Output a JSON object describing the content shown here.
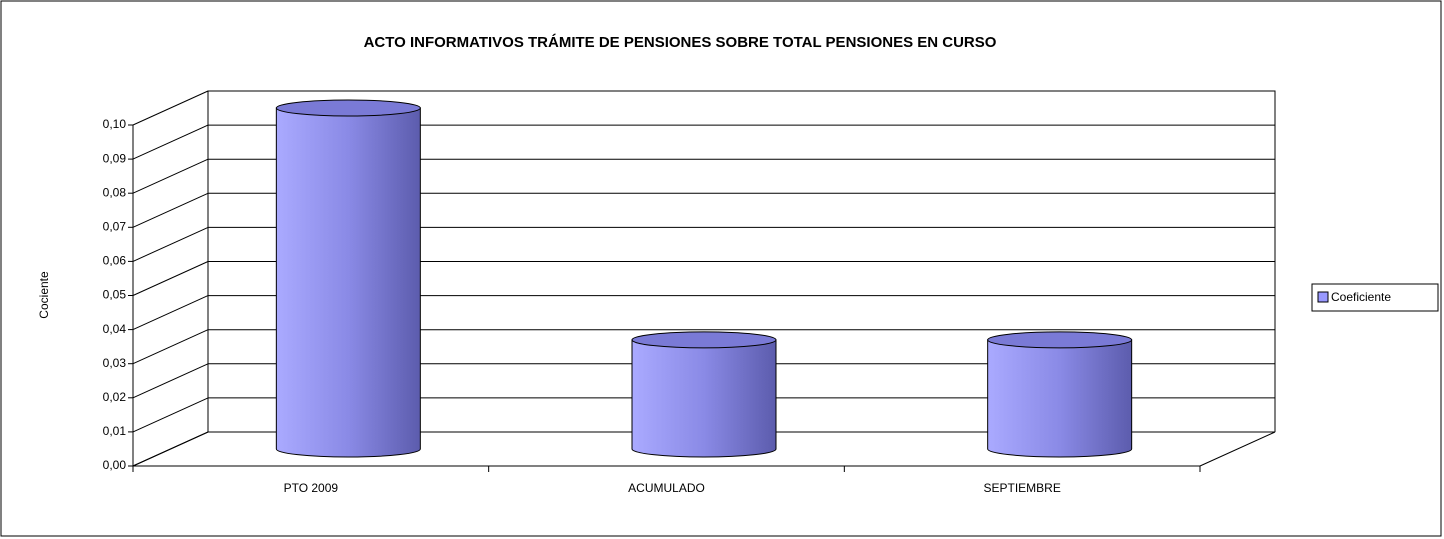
{
  "chart_data": {
    "type": "bar",
    "title": "ACTO INFORMATIVOS TRÁMITE DE PENSIONES SOBRE TOTAL PENSIONES EN CURSO",
    "y_label": "Cociente",
    "categories": [
      "PTO 2009",
      "ACUMULADO",
      "SEPTIEMBRE"
    ],
    "series": [
      {
        "name": "Coeficiente",
        "color": "#9999ff",
        "values": [
          0.1,
          0.032,
          0.032
        ]
      }
    ],
    "ylim": [
      0,
      0.1
    ],
    "yticks": [
      {
        "value": 0,
        "label": "0,00"
      },
      {
        "value": 0.01,
        "label": "0,01"
      },
      {
        "value": 0.02,
        "label": "0,02"
      },
      {
        "value": 0.03,
        "label": "0,03"
      },
      {
        "value": 0.04,
        "label": "0,04"
      },
      {
        "value": 0.05,
        "label": "0,05"
      },
      {
        "value": 0.06,
        "label": "0,06"
      },
      {
        "value": 0.07,
        "label": "0,07"
      },
      {
        "value": 0.08,
        "label": "0,08"
      },
      {
        "value": 0.09,
        "label": "0,09"
      },
      {
        "value": 0.1,
        "label": "0,10"
      }
    ],
    "grid": true,
    "legend": "right"
  }
}
